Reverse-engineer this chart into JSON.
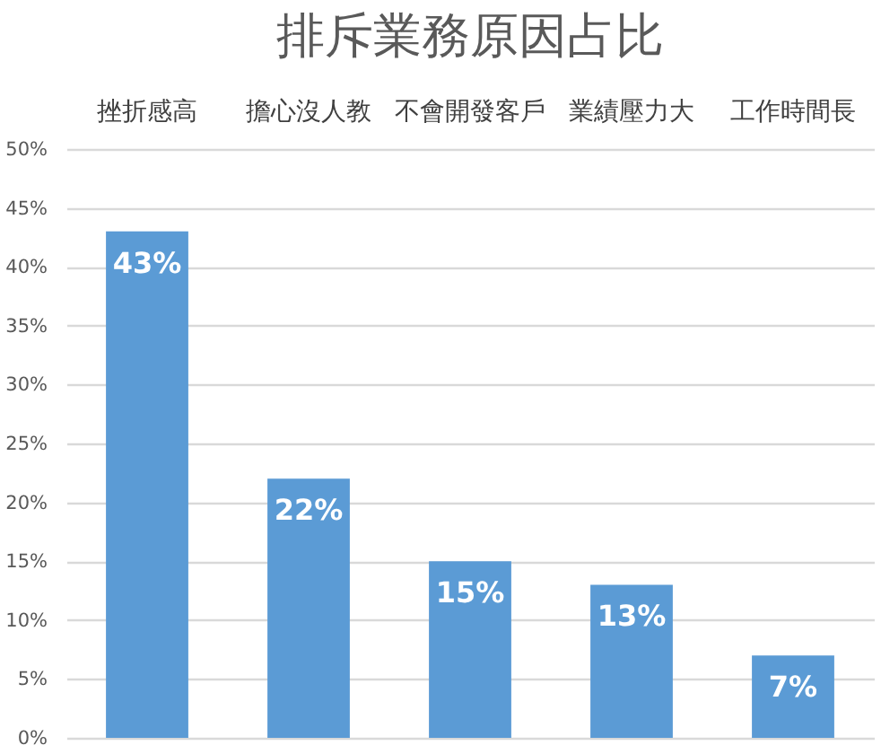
{
  "chart_data": {
    "type": "bar",
    "title": "排斥業務原因占比",
    "categories": [
      "挫折感高",
      "擔心沒人教",
      "不會開發客戶",
      "業績壓力大",
      "工作時間長"
    ],
    "values": [
      43,
      22,
      15,
      13,
      7
    ],
    "value_labels": [
      "43%",
      "22%",
      "15%",
      "13%",
      "7%"
    ],
    "color": "#5b9bd5",
    "ylim": [
      0,
      50
    ],
    "yticks": [
      {
        "value": 0,
        "label": "0%"
      },
      {
        "value": 5,
        "label": "5%"
      },
      {
        "value": 10,
        "label": "10%"
      },
      {
        "value": 15,
        "label": "15%"
      },
      {
        "value": 20,
        "label": "20%"
      },
      {
        "value": 25,
        "label": "25%"
      },
      {
        "value": 30,
        "label": "30%"
      },
      {
        "value": 35,
        "label": "35%"
      },
      {
        "value": 40,
        "label": "40%"
      },
      {
        "value": 45,
        "label": "45%"
      },
      {
        "value": 50,
        "label": "50%"
      }
    ],
    "grid": "y"
  }
}
